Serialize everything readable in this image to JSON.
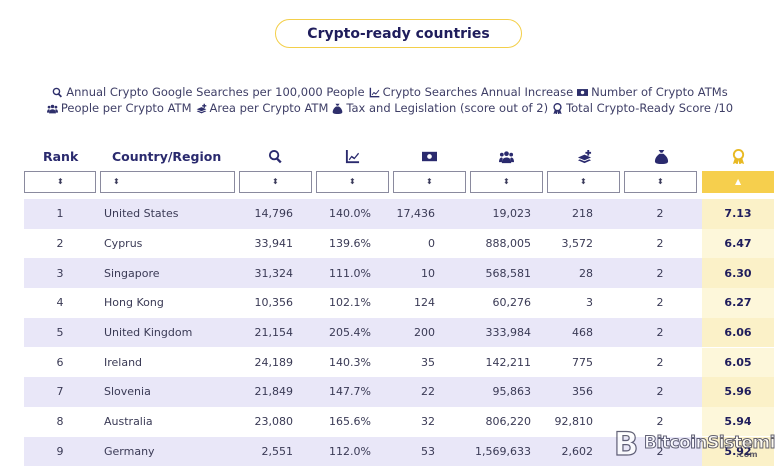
{
  "title": "Crypto-ready countries",
  "legend": [
    {
      "icon": "search-icon",
      "label": "Annual Crypto Google Searches per 100,000 People"
    },
    {
      "icon": "trend-chart-icon",
      "label": "Crypto Searches Annual Increase"
    },
    {
      "icon": "money-icon",
      "label": "Number of Crypto ATMs"
    },
    {
      "icon": "people-icon",
      "label": "People per Crypto ATM"
    },
    {
      "icon": "area-layers-icon",
      "label": "Area per Crypto ATM"
    },
    {
      "icon": "money-bag-icon",
      "label": "Tax and Legislation (score out of 2)"
    },
    {
      "icon": "award-ribbon-icon",
      "label": "Total Crypto-Ready Score /10"
    }
  ],
  "headers": {
    "rank": "Rank",
    "country": "Country/Region"
  },
  "sort_glyph": "⬍",
  "sort_active_glyph": "▲",
  "rows": [
    {
      "rank": "1",
      "country": "United States",
      "searches": "14,796",
      "increase": "140.0%",
      "atms": "17,436",
      "people": "19,023",
      "area": "218",
      "tax": "2",
      "score": "7.13"
    },
    {
      "rank": "2",
      "country": "Cyprus",
      "searches": "33,941",
      "increase": "139.6%",
      "atms": "0",
      "people": "888,005",
      "area": "3,572",
      "tax": "2",
      "score": "6.47"
    },
    {
      "rank": "3",
      "country": "Singapore",
      "searches": "31,324",
      "increase": "111.0%",
      "atms": "10",
      "people": "568,581",
      "area": "28",
      "tax": "2",
      "score": "6.30"
    },
    {
      "rank": "4",
      "country": "Hong Kong",
      "searches": "10,356",
      "increase": "102.1%",
      "atms": "124",
      "people": "60,276",
      "area": "3",
      "tax": "2",
      "score": "6.27"
    },
    {
      "rank": "5",
      "country": "United Kingdom",
      "searches": "21,154",
      "increase": "205.4%",
      "atms": "200",
      "people": "333,984",
      "area": "468",
      "tax": "2",
      "score": "6.06"
    },
    {
      "rank": "6",
      "country": "Ireland",
      "searches": "24,189",
      "increase": "140.3%",
      "atms": "35",
      "people": "142,211",
      "area": "775",
      "tax": "2",
      "score": "6.05"
    },
    {
      "rank": "7",
      "country": "Slovenia",
      "searches": "21,849",
      "increase": "147.7%",
      "atms": "22",
      "people": "95,863",
      "area": "356",
      "tax": "2",
      "score": "5.96"
    },
    {
      "rank": "8",
      "country": "Australia",
      "searches": "23,080",
      "increase": "165.6%",
      "atms": "32",
      "people": "806,220",
      "area": "92,810",
      "tax": "2",
      "score": "5.94"
    },
    {
      "rank": "9",
      "country": "Germany",
      "searches": "2,551",
      "increase": "112.0%",
      "atms": "53",
      "people": "1,569,633",
      "area": "2,602",
      "tax": "2",
      "score": "5.92"
    }
  ],
  "watermark": {
    "text": "BitcoinSistemi",
    "suffix": ".com"
  },
  "colors": {
    "accent": "#f6cf4d",
    "stripe": "#e9e7f8",
    "text": "#23235b"
  }
}
